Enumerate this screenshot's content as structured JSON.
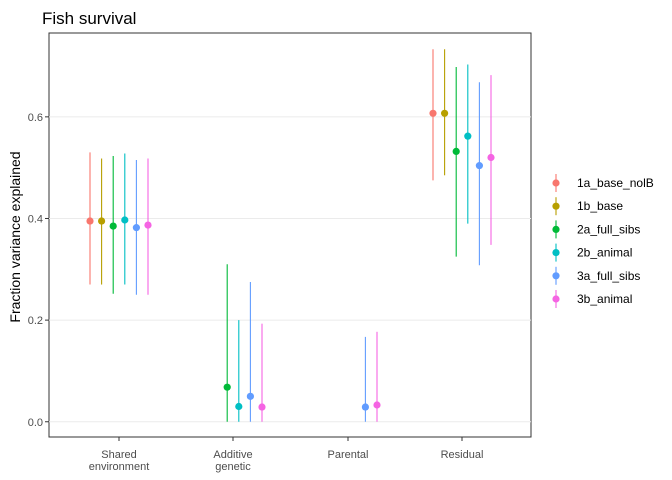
{
  "chart_data": {
    "type": "scatter",
    "title": "Fish survival",
    "xlabel": "",
    "ylabel": "Fraction variance explained",
    "ylim": [
      -0.03,
      0.765
    ],
    "yticks": [
      "0.0",
      "0.2",
      "0.4",
      "0.6"
    ],
    "categories": [
      [
        "Shared",
        "environment"
      ],
      [
        "Additive",
        "genetic"
      ],
      [
        "Parental"
      ],
      [
        "Residual"
      ]
    ],
    "legend_position": "right",
    "series": [
      {
        "name": "1a_base_nolB",
        "color": "#F8766D",
        "points": [
          {
            "category": 0,
            "y": 0.395,
            "lo": 0.27,
            "hi": 0.53
          },
          {
            "category": 3,
            "y": 0.607,
            "lo": 0.475,
            "hi": 0.733
          }
        ]
      },
      {
        "name": "1b_base",
        "color": "#B79F00",
        "points": [
          {
            "category": 0,
            "y": 0.395,
            "lo": 0.27,
            "hi": 0.518
          },
          {
            "category": 3,
            "y": 0.607,
            "lo": 0.485,
            "hi": 0.733
          }
        ]
      },
      {
        "name": "2a_full_sibs",
        "color": "#00BA38",
        "points": [
          {
            "category": 0,
            "y": 0.385,
            "lo": 0.252,
            "hi": 0.523
          },
          {
            "category": 1,
            "y": 0.068,
            "lo": 0.0,
            "hi": 0.31
          },
          {
            "category": 3,
            "y": 0.532,
            "lo": 0.325,
            "hi": 0.698
          }
        ]
      },
      {
        "name": "2b_animal",
        "color": "#00BFC4",
        "points": [
          {
            "category": 0,
            "y": 0.397,
            "lo": 0.27,
            "hi": 0.528
          },
          {
            "category": 1,
            "y": 0.03,
            "lo": 0.0,
            "hi": 0.2
          },
          {
            "category": 3,
            "y": 0.562,
            "lo": 0.39,
            "hi": 0.703
          }
        ]
      },
      {
        "name": "3a_full_sibs",
        "color": "#619CFF",
        "points": [
          {
            "category": 0,
            "y": 0.382,
            "lo": 0.25,
            "hi": 0.515
          },
          {
            "category": 1,
            "y": 0.05,
            "lo": 0.0,
            "hi": 0.275
          },
          {
            "category": 2,
            "y": 0.029,
            "lo": 0.0,
            "hi": 0.167
          },
          {
            "category": 3,
            "y": 0.504,
            "lo": 0.308,
            "hi": 0.668
          }
        ]
      },
      {
        "name": "3b_animal",
        "color": "#F564E3",
        "points": [
          {
            "category": 0,
            "y": 0.387,
            "lo": 0.25,
            "hi": 0.518
          },
          {
            "category": 1,
            "y": 0.029,
            "lo": 0.0,
            "hi": 0.193
          },
          {
            "category": 2,
            "y": 0.033,
            "lo": 0.0,
            "hi": 0.177
          },
          {
            "category": 3,
            "y": 0.52,
            "lo": 0.348,
            "hi": 0.682
          }
        ]
      }
    ]
  }
}
